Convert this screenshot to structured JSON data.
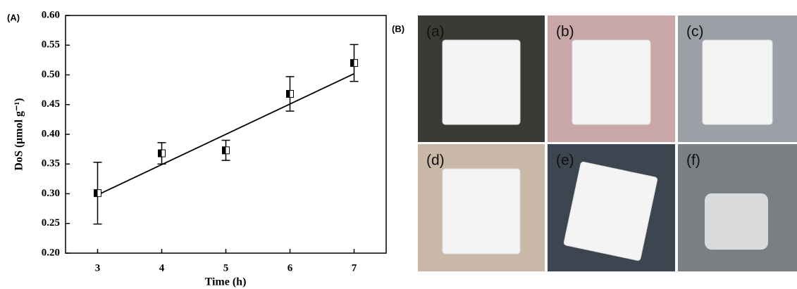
{
  "chart_data": {
    "type": "scatter",
    "panel_label": "(A)",
    "x_label": "Time (h)",
    "y_label": "DoS (μmol g⁻¹)",
    "x": [
      3,
      4,
      5,
      6,
      7
    ],
    "series": [
      {
        "values": [
          0.301,
          0.368,
          0.373,
          0.468,
          0.52
        ],
        "errors": [
          0.052,
          0.018,
          0.017,
          0.029,
          0.031
        ],
        "color": "#000000"
      }
    ],
    "fit_line": {
      "x": [
        3,
        7
      ],
      "values": [
        0.298,
        0.502
      ],
      "color": "#000000"
    },
    "xlim": [
      2.5,
      7.5
    ],
    "xticks": [
      3,
      4,
      5,
      6,
      7
    ],
    "ylim": [
      0.2,
      0.6
    ],
    "yticks": [
      {
        "value": 0.2,
        "label": "0.20"
      },
      {
        "value": 0.25,
        "label": "0.25"
      },
      {
        "value": 0.3,
        "label": "0.30"
      },
      {
        "value": 0.35,
        "label": "0.35"
      },
      {
        "value": 0.4,
        "label": "0.40"
      },
      {
        "value": 0.45,
        "label": "0.45"
      },
      {
        "value": 0.5,
        "label": "0.50"
      },
      {
        "value": 0.55,
        "label": "0.55"
      },
      {
        "value": 0.6,
        "label": "0.60"
      }
    ],
    "grid": false
  },
  "photo_panel": {
    "label": "(B)",
    "photos": [
      "(a)",
      "(b)",
      "(c)",
      "(d)",
      "(e)",
      "(f)"
    ]
  }
}
